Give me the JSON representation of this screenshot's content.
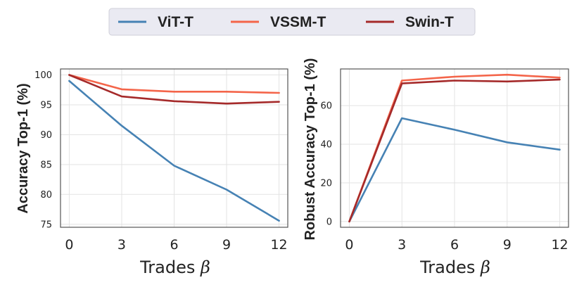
{
  "legend": {
    "items": [
      {
        "label": "ViT-T",
        "color": "#4682b4"
      },
      {
        "label": "VSSM-T",
        "color": "#f4654a"
      },
      {
        "label": "Swin-T",
        "color": "#a52a2a"
      }
    ]
  },
  "chart_data": [
    {
      "type": "line",
      "title": "",
      "xlabel": "Trades",
      "xlabel_symbol": "β",
      "ylabel": "Accuracy Top-1 (%)",
      "x": [
        0,
        3,
        6,
        9,
        12
      ],
      "xticks": [
        "0",
        "3",
        "6",
        "9",
        "12"
      ],
      "yticks": [
        "75",
        "80",
        "85",
        "90",
        "95",
        "100"
      ],
      "xlim": [
        -0.5,
        12.5
      ],
      "ylim": [
        74.5,
        101
      ],
      "grid": true,
      "series": [
        {
          "name": "ViT-T",
          "color": "#4682b4",
          "values": [
            99.0,
            91.5,
            84.8,
            80.8,
            75.6
          ]
        },
        {
          "name": "VSSM-T",
          "color": "#f4654a",
          "values": [
            100.0,
            97.6,
            97.2,
            97.2,
            97.0
          ]
        },
        {
          "name": "Swin-T",
          "color": "#a52a2a",
          "values": [
            100.0,
            96.4,
            95.6,
            95.2,
            95.5
          ]
        }
      ]
    },
    {
      "type": "line",
      "title": "",
      "xlabel": "Trades",
      "xlabel_symbol": "β",
      "ylabel": "Robust Accuracy Top-1 (%)",
      "x": [
        0,
        3,
        6,
        9,
        12
      ],
      "xticks": [
        "0",
        "3",
        "6",
        "9",
        "12"
      ],
      "yticks": [
        "0",
        "20",
        "40",
        "60"
      ],
      "xlim": [
        -0.5,
        12.5
      ],
      "ylim": [
        -3,
        79
      ],
      "grid": true,
      "series": [
        {
          "name": "ViT-T",
          "color": "#4682b4",
          "values": [
            0.0,
            53.5,
            47.5,
            41.0,
            37.2
          ]
        },
        {
          "name": "VSSM-T",
          "color": "#f4654a",
          "values": [
            0.0,
            73.0,
            75.0,
            76.0,
            74.5
          ]
        },
        {
          "name": "Swin-T",
          "color": "#a52a2a",
          "values": [
            0.0,
            71.5,
            73.0,
            72.5,
            73.5
          ]
        }
      ]
    }
  ]
}
